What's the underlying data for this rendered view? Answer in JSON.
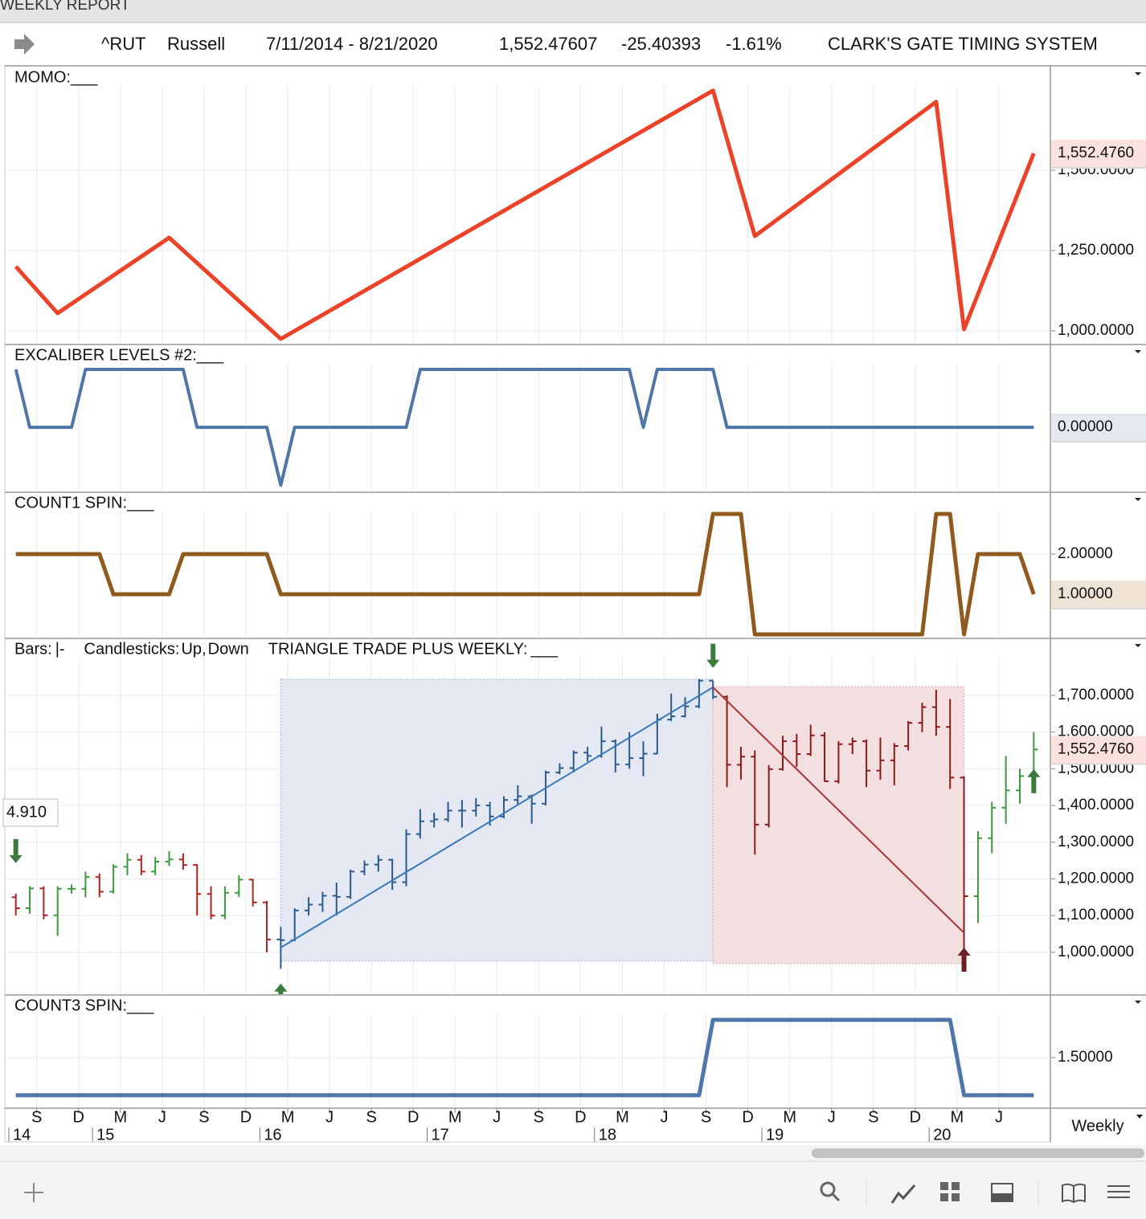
{
  "window_title": "WEEKLY REPORT",
  "header": {
    "symbol": "^RUT",
    "name": "Russell",
    "date_range": "7/11/2014 - 8/21/2020",
    "last": "1,552.47607",
    "change": "-25.40393",
    "change_percent": "-1.61%",
    "system": "CLARK'S GATE TIMING SYSTEM"
  },
  "timeframe": "Weekly",
  "time_axis": {
    "xlim": [
      "2014-07",
      "2020-09"
    ],
    "ticks": [
      {
        "value": "2014-09",
        "label": "S"
      },
      {
        "value": "2014-12",
        "label": "D"
      },
      {
        "value": "2015-03",
        "label": "M"
      },
      {
        "value": "2015-06",
        "label": "J"
      },
      {
        "value": "2015-09",
        "label": "S"
      },
      {
        "value": "2015-12",
        "label": "D"
      },
      {
        "value": "2016-03",
        "label": "M"
      },
      {
        "value": "2016-06",
        "label": "J"
      },
      {
        "value": "2016-09",
        "label": "S"
      },
      {
        "value": "2016-12",
        "label": "D"
      },
      {
        "value": "2017-03",
        "label": "M"
      },
      {
        "value": "2017-06",
        "label": "J"
      },
      {
        "value": "2017-09",
        "label": "S"
      },
      {
        "value": "2017-12",
        "label": "D"
      },
      {
        "value": "2018-03",
        "label": "M"
      },
      {
        "value": "2018-06",
        "label": "J"
      },
      {
        "value": "2018-09",
        "label": "S"
      },
      {
        "value": "2018-12",
        "label": "D"
      },
      {
        "value": "2019-03",
        "label": "M"
      },
      {
        "value": "2019-06",
        "label": "J"
      },
      {
        "value": "2019-09",
        "label": "S"
      },
      {
        "value": "2019-12",
        "label": "D"
      },
      {
        "value": "2020-03",
        "label": "M"
      },
      {
        "value": "2020-06",
        "label": "J"
      }
    ],
    "year_ticks": [
      {
        "value": "2014-07",
        "label": "14"
      },
      {
        "value": "2015-01",
        "label": "15"
      },
      {
        "value": "2016-01",
        "label": "16"
      },
      {
        "value": "2017-01",
        "label": "17"
      },
      {
        "value": "2018-01",
        "label": "18"
      },
      {
        "value": "2019-01",
        "label": "19"
      },
      {
        "value": "2020-01",
        "label": "20"
      }
    ]
  },
  "chart_data": [
    {
      "type": "line",
      "title": "MOMO:",
      "legend_mark": "___",
      "color": "#ec4227",
      "line_width": 5,
      "x": [
        "2014-07",
        "2014-10",
        "2015-06",
        "2016-02",
        "2018-09",
        "2018-12",
        "2020-01",
        "2020-03",
        "2020-08"
      ],
      "values": [
        1200,
        1055,
        1290,
        975,
        1748,
        1295,
        1713,
        1005,
        1552.476
      ],
      "ylim": [
        960,
        1820
      ],
      "yticks": [
        {
          "value": 1000,
          "label": "1,000.0000"
        },
        {
          "value": 1250,
          "label": "1,250.0000"
        },
        {
          "value": 1500,
          "label": "1,500.0000"
        }
      ],
      "price_tag": {
        "value": 1552.476,
        "label": "1,552.4760",
        "color": "#c0392b",
        "background": "#fbe2de"
      }
    },
    {
      "type": "line",
      "title": "EXCALIBER LEVELS #2:",
      "legend_mark": "___",
      "color": "#4f76a8",
      "line_width": 4,
      "x": [
        "2014-07",
        "2014-08",
        "2014-11",
        "2014-12",
        "2015-07",
        "2015-08",
        "2016-01",
        "2016-02",
        "2016-03",
        "2016-11",
        "2016-12",
        "2018-03",
        "2018-04",
        "2018-05",
        "2018-09",
        "2018-10",
        "2020-08"
      ],
      "values": [
        1,
        0,
        0,
        1,
        1,
        0,
        0,
        -1,
        0,
        0,
        1,
        1,
        0,
        1,
        1,
        0,
        0
      ],
      "ylim": [
        -1.11,
        1.417
      ],
      "yticks": [],
      "price_tag": {
        "value": 0,
        "label": "0.00000",
        "color": "#3f6a9c",
        "background": "#e4e9f1"
      }
    },
    {
      "type": "line",
      "title": "COUNT1 SPIN:",
      "legend_mark": "___",
      "color": "#8f5a1c",
      "line_width": 5,
      "x": [
        "2014-07",
        "2015-01",
        "2015-02",
        "2015-06",
        "2015-07",
        "2016-01",
        "2016-02",
        "2018-08",
        "2018-09",
        "2018-11",
        "2018-12",
        "2019-12",
        "2020-01",
        "2020-02",
        "2020-03",
        "2020-04",
        "2020-07",
        "2020-08"
      ],
      "values": [
        2,
        2,
        1,
        1,
        2,
        2,
        1,
        1,
        3,
        3,
        0,
        0,
        3,
        3,
        0,
        2,
        2,
        1
      ],
      "ylim": [
        -0.08,
        3.52
      ],
      "yticks": [
        {
          "value": 2,
          "label": "2.00000"
        }
      ],
      "price_tag": {
        "value": 1,
        "label": "1.00000",
        "color": "#8f5a1c",
        "background": "#efe3d6"
      }
    },
    {
      "type": "ohlc",
      "legend": [
        {
          "text": "Bars:",
          "color": "#111111"
        },
        {
          "text": "|-",
          "color": "#111111"
        },
        {
          "text": "Candlesticks:",
          "color": "#111111"
        },
        {
          "text": "Up",
          "color": "#3c9a3c"
        },
        {
          "text": ",",
          "color": "#111111"
        },
        {
          "text": "Down",
          "color": "#b22222"
        },
        {
          "text": "TRIANGLE TRADE PLUS WEEKLY:",
          "color": "#111111"
        },
        {
          "text": "___",
          "color": "#3a6ea5"
        }
      ],
      "up_color": "#3c9a3c",
      "down_color": "#b22222",
      "x": [
        "2014-07",
        "2014-08",
        "2014-09",
        "2014-10",
        "2014-11",
        "2014-12",
        "2015-01",
        "2015-02",
        "2015-03",
        "2015-04",
        "2015-05",
        "2015-06",
        "2015-07",
        "2015-08",
        "2015-09",
        "2015-10",
        "2015-11",
        "2015-12",
        "2016-01",
        "2016-02",
        "2016-03",
        "2016-04",
        "2016-05",
        "2016-06",
        "2016-07",
        "2016-08",
        "2016-09",
        "2016-10",
        "2016-11",
        "2016-12",
        "2017-01",
        "2017-02",
        "2017-03",
        "2017-04",
        "2017-05",
        "2017-06",
        "2017-07",
        "2017-08",
        "2017-09",
        "2017-10",
        "2017-11",
        "2017-12",
        "2018-01",
        "2018-02",
        "2018-03",
        "2018-04",
        "2018-05",
        "2018-06",
        "2018-07",
        "2018-08",
        "2018-09",
        "2018-10",
        "2018-11",
        "2018-12",
        "2019-01",
        "2019-02",
        "2019-03",
        "2019-04",
        "2019-05",
        "2019-06",
        "2019-07",
        "2019-08",
        "2019-09",
        "2019-10",
        "2019-11",
        "2019-12",
        "2020-01",
        "2020-02",
        "2020-03",
        "2020-04",
        "2020-05",
        "2020-06",
        "2020-07",
        "2020-08"
      ],
      "open": [
        1150,
        1120,
        1174,
        1101,
        1173,
        1173,
        1205,
        1165,
        1233,
        1252,
        1220,
        1247,
        1253,
        1238,
        1159,
        1100,
        1162,
        1198,
        1136,
        1035,
        1033,
        1114,
        1130,
        1154,
        1151,
        1220,
        1239,
        1252,
        1191,
        1322,
        1357,
        1362,
        1386,
        1386,
        1400,
        1370,
        1415,
        1425,
        1405,
        1490,
        1502,
        1544,
        1535,
        1575,
        1512,
        1529,
        1541,
        1634,
        1643,
        1670,
        1740,
        1696,
        1511,
        1533,
        1348,
        1499,
        1575,
        1540,
        1591,
        1466,
        1567,
        1575,
        1495,
        1523,
        1562,
        1625,
        1668,
        1614,
        1476,
        1153,
        1311,
        1394,
        1441,
        1480
      ],
      "high": [
        1160,
        1180,
        1180,
        1180,
        1185,
        1220,
        1215,
        1240,
        1270,
        1265,
        1260,
        1275,
        1270,
        1240,
        1180,
        1180,
        1210,
        1200,
        1140,
        1070,
        1120,
        1150,
        1165,
        1190,
        1225,
        1250,
        1265,
        1255,
        1335,
        1390,
        1380,
        1410,
        1415,
        1420,
        1410,
        1425,
        1455,
        1430,
        1495,
        1515,
        1550,
        1560,
        1615,
        1580,
        1600,
        1575,
        1650,
        1705,
        1695,
        1745,
        1740,
        1700,
        1560,
        1550,
        1510,
        1590,
        1595,
        1620,
        1600,
        1575,
        1585,
        1580,
        1585,
        1570,
        1630,
        1680,
        1715,
        1690,
        1480,
        1330,
        1410,
        1535,
        1500,
        1600
      ],
      "low": [
        1100,
        1105,
        1090,
        1045,
        1160,
        1150,
        1150,
        1160,
        1210,
        1210,
        1210,
        1235,
        1225,
        1100,
        1090,
        1090,
        1150,
        1125,
        1000,
        955,
        1030,
        1100,
        1110,
        1100,
        1145,
        1210,
        1220,
        1170,
        1180,
        1310,
        1340,
        1355,
        1340,
        1370,
        1345,
        1365,
        1400,
        1350,
        1400,
        1485,
        1490,
        1520,
        1530,
        1490,
        1500,
        1480,
        1540,
        1630,
        1640,
        1665,
        1690,
        1450,
        1470,
        1266,
        1340,
        1495,
        1505,
        1535,
        1465,
        1460,
        1540,
        1450,
        1470,
        1455,
        1550,
        1600,
        1590,
        1445,
        966,
        1080,
        1270,
        1350,
        1405,
        1470
      ],
      "close": [
        1120,
        1174,
        1101,
        1173,
        1173,
        1205,
        1165,
        1233,
        1252,
        1220,
        1247,
        1253,
        1238,
        1159,
        1100,
        1162,
        1198,
        1136,
        1035,
        1033,
        1114,
        1130,
        1154,
        1151,
        1220,
        1239,
        1252,
        1191,
        1322,
        1357,
        1362,
        1386,
        1386,
        1400,
        1370,
        1415,
        1425,
        1405,
        1490,
        1502,
        1544,
        1535,
        1575,
        1512,
        1529,
        1541,
        1634,
        1643,
        1670,
        1740,
        1696,
        1511,
        1533,
        1348,
        1499,
        1575,
        1540,
        1591,
        1466,
        1567,
        1575,
        1495,
        1523,
        1562,
        1625,
        1668,
        1614,
        1476,
        1153,
        1311,
        1394,
        1441,
        1480,
        1552.476
      ],
      "ylim": [
        886,
        1853
      ],
      "yticks": [
        {
          "value": 1000,
          "label": "1,000.0000"
        },
        {
          "value": 1100,
          "label": "1,100.0000"
        },
        {
          "value": 1200,
          "label": "1,200.0000"
        },
        {
          "value": 1300,
          "label": "1,300.0000"
        },
        {
          "value": 1400,
          "label": "1,400.0000"
        },
        {
          "value": 1500,
          "label": "1,500.0000"
        },
        {
          "value": 1600,
          "label": "1,600.0000"
        },
        {
          "value": 1700,
          "label": "1,700.0000"
        }
      ],
      "boxes": [
        {
          "x": [
            "2016-02",
            "2018-09"
          ],
          "y": [
            976,
            1744
          ],
          "fill": "#e3e8f2",
          "stroke": "#9fb4d3",
          "bar_color": "#2c5a8c"
        },
        {
          "x": [
            "2018-09",
            "2020-03"
          ],
          "y": [
            969,
            1724
          ],
          "fill": "#f4dfe0",
          "stroke": "#d9a2a4",
          "bar_color": "#8b1a1a"
        }
      ],
      "trend_lines": [
        {
          "x": [
            "2016-02",
            "2018-09"
          ],
          "values": [
            1013,
            1722
          ],
          "color": "#3a78b8"
        },
        {
          "x": [
            "2018-09",
            "2020-03"
          ],
          "values": [
            1722,
            1053
          ],
          "color": "#a8343a"
        }
      ],
      "signals": [
        {
          "x": "2014-07",
          "value": 1243,
          "direction": "down",
          "color": "#3d7a3d"
        },
        {
          "x": "2016-02",
          "value": 915,
          "direction": "up",
          "color": "#3d7a3d"
        },
        {
          "x": "2018-09",
          "value": 1775,
          "direction": "down",
          "color": "#3d7a3d"
        },
        {
          "x": "2020-03",
          "value": 1013,
          "direction": "up",
          "color": "#6b1f24"
        },
        {
          "x": "2020-08",
          "value": 1499,
          "direction": "up",
          "color": "#3d7a3d"
        }
      ],
      "left_tag": "4.910",
      "price_tag": {
        "value": 1552.476,
        "label": "1,552.4760",
        "color": "#c0392b",
        "background": "#fbe2de"
      }
    },
    {
      "type": "line",
      "title": "COUNT3 SPIN:",
      "legend_mark": "___",
      "color": "#4f76a8",
      "line_width": 5,
      "x": [
        "2014-07",
        "2018-08",
        "2018-09",
        "2020-02",
        "2020-03",
        "2020-08"
      ],
      "values": [
        1,
        1,
        2,
        2,
        1,
        1
      ],
      "ylim": [
        0.85,
        2.32
      ],
      "yticks": [
        {
          "value": 1.5,
          "label": "1.50000"
        }
      ]
    }
  ]
}
